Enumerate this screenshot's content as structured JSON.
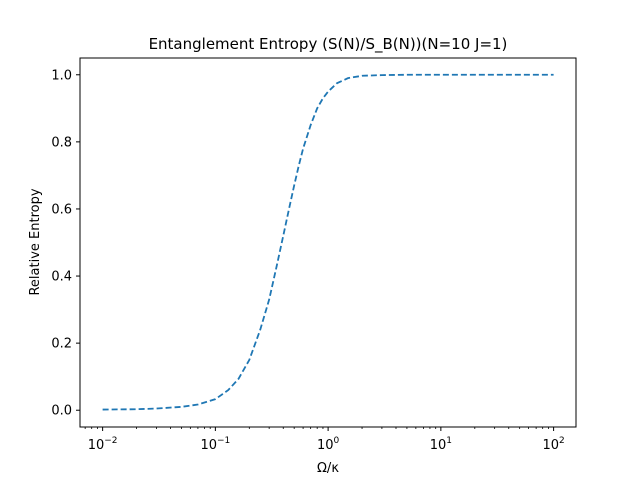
{
  "chart_data": {
    "type": "line",
    "title": "Entanglement Entropy (S(N)/S_B(N))(N=10 J=1)",
    "xlabel": "Ω/κ",
    "ylabel": "Relative Entropy",
    "xscale": "log",
    "xlim": [
      0.0063,
      158
    ],
    "ylim": [
      -0.05,
      1.05
    ],
    "xticks": [
      {
        "value": 0.01,
        "base": "10",
        "exp": "−2"
      },
      {
        "value": 0.1,
        "base": "10",
        "exp": "−1"
      },
      {
        "value": 1,
        "base": "10",
        "exp": "0"
      },
      {
        "value": 10,
        "base": "10",
        "exp": "1"
      },
      {
        "value": 100,
        "base": "10",
        "exp": "2"
      }
    ],
    "yticks": [
      "0.0",
      "0.2",
      "0.4",
      "0.6",
      "0.8",
      "1.0"
    ],
    "grid": false,
    "line_style": "dashed",
    "series": [
      {
        "color": "#1f77b4",
        "x": [
          0.01,
          0.02,
          0.03,
          0.05,
          0.07,
          0.1,
          0.13,
          0.16,
          0.2,
          0.25,
          0.3,
          0.35,
          0.4,
          0.45,
          0.5,
          0.55,
          0.6,
          0.7,
          0.8,
          0.9,
          1.0,
          1.2,
          1.5,
          2.0,
          3.0,
          5.0,
          10,
          30,
          100
        ],
        "y": [
          0.002,
          0.003,
          0.005,
          0.01,
          0.017,
          0.033,
          0.06,
          0.093,
          0.15,
          0.24,
          0.33,
          0.43,
          0.52,
          0.6,
          0.67,
          0.73,
          0.78,
          0.85,
          0.9,
          0.93,
          0.95,
          0.975,
          0.99,
          0.997,
          0.999,
          1.0,
          1.0,
          1.0,
          1.0
        ]
      }
    ]
  }
}
